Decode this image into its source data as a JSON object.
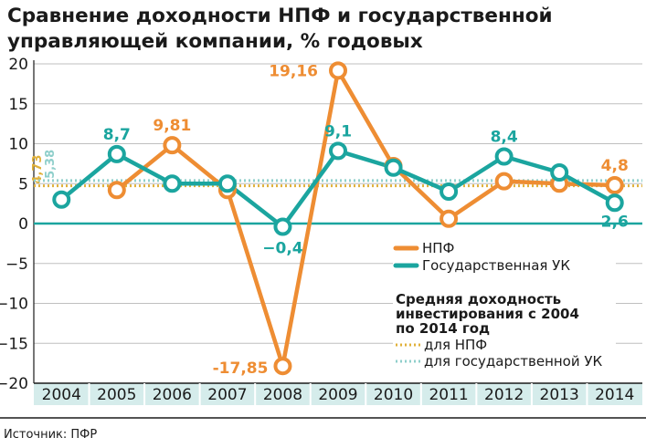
{
  "title_line1": "Сравнение доходности НПФ и государственной",
  "title_line2": "управляющей компании, % годовых",
  "source": "Источник: ПФР",
  "colors": {
    "npf": "#ee8d33",
    "guk": "#1ba59f",
    "axis_band": "#d5eceb",
    "grid": "#bfbfbf"
  },
  "chart_data": {
    "type": "line",
    "x": [
      "2004",
      "2005",
      "2006",
      "2007",
      "2008",
      "2009",
      "2010",
      "2011",
      "2012",
      "2013",
      "2014"
    ],
    "ylim": [
      -20,
      20
    ],
    "yticks": [
      "20",
      "15",
      "10",
      "5",
      "0",
      "−5",
      "−10",
      "−15",
      "−20"
    ],
    "series": [
      {
        "name": "НПФ",
        "color": "#ee8d33",
        "values": [
          null,
          4.2,
          9.81,
          4.2,
          -17.85,
          19.16,
          7.2,
          0.6,
          5.3,
          5.0,
          4.8
        ]
      },
      {
        "name": "Государственная УК",
        "color": "#1ba59f",
        "values": [
          3.0,
          8.7,
          5.0,
          5.0,
          -0.4,
          9.1,
          7.0,
          4.0,
          8.4,
          6.4,
          2.6
        ]
      }
    ],
    "data_labels": [
      {
        "series": "НПФ",
        "x": "2006",
        "text": "9,81"
      },
      {
        "series": "НПФ",
        "x": "2008",
        "text": "-17,85"
      },
      {
        "series": "НПФ",
        "x": "2009",
        "text": "19,16"
      },
      {
        "series": "НПФ",
        "x": "2014",
        "text": "4,8"
      },
      {
        "series": "Государственная УК",
        "x": "2005",
        "text": "8,7"
      },
      {
        "series": "Государственная УК",
        "x": "2008",
        "text": "−0,4"
      },
      {
        "series": "Государственная УК",
        "x": "2009",
        "text": "9,1"
      },
      {
        "series": "Государственная УК",
        "x": "2012",
        "text": "8,4"
      },
      {
        "series": "Государственная УК",
        "x": "2014",
        "text": "2,6"
      }
    ],
    "averages": [
      {
        "name": "для НПФ",
        "value": 4.73,
        "text": "4,73",
        "color": "#e0b13a"
      },
      {
        "name": "для государственной УК",
        "value": 5.38,
        "text": "5,38",
        "color": "#8fcfcb"
      }
    ],
    "legend": {
      "items": [
        "НПФ",
        "Государственная УК"
      ],
      "avg_heading_line1": "Средняя доходность",
      "avg_heading_line2": "инвестирования с 2004",
      "avg_heading_line3": "по 2014 год",
      "avg_items": [
        "для НПФ",
        "для государственной УК"
      ]
    },
    "grid": true
  }
}
